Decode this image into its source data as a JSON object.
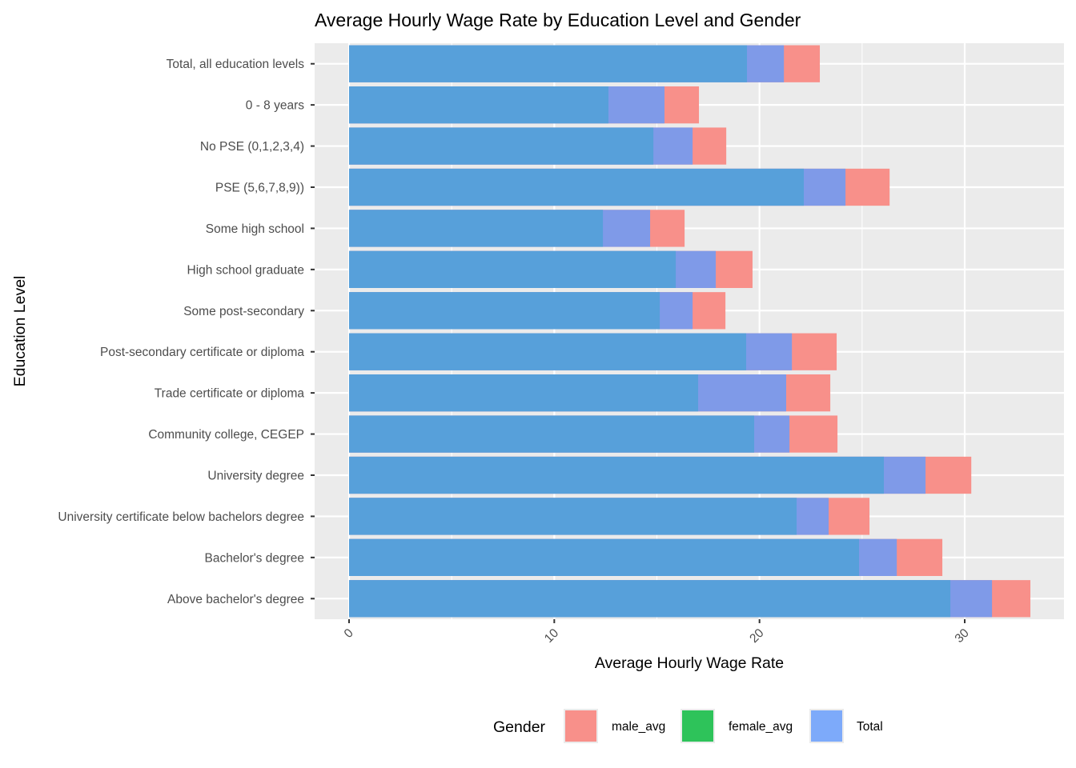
{
  "chart_data": {
    "type": "bar",
    "orientation": "horizontal",
    "title": "Average Hourly Wage Rate by Education Level and Gender",
    "xlabel": "Average Hourly Wage Rate",
    "ylabel": "Education Level",
    "xlim": [
      0,
      35
    ],
    "x_ticks": [
      0,
      10,
      20,
      30
    ],
    "grid": true,
    "legend": {
      "title": "Gender",
      "position": "bottom",
      "entries": [
        {
          "label": "male_avg",
          "color": "#f8908a"
        },
        {
          "label": "female_avg",
          "color": "#2ec35a"
        },
        {
          "label": "Total",
          "color": "#7daafa"
        }
      ]
    },
    "categories": [
      "Total, all education levels",
      "0 - 8  years",
      "No PSE  (0,1,2,3,4)",
      "PSE  (5,6,7,8,9))",
      "Some high school",
      "High school graduate",
      "Some post-secondary",
      "Post-secondary certificate or diploma",
      "Trade certificate or diploma",
      "Community college, CEGEP",
      "University degree",
      "University certificate below bachelors degree",
      "Bachelor's degree",
      "Above bachelor's degree"
    ],
    "series": [
      {
        "name": "male_avg",
        "values": [
          22.94,
          17.05,
          18.38,
          26.34,
          16.35,
          19.66,
          18.34,
          23.76,
          23.45,
          23.8,
          30.32,
          25.36,
          28.91,
          33.2
        ]
      },
      {
        "name": "Total",
        "values": [
          21.19,
          15.37,
          16.74,
          24.19,
          14.67,
          17.87,
          16.74,
          21.58,
          21.3,
          21.46,
          28.09,
          23.37,
          26.69,
          31.33
        ]
      },
      {
        "name": "female_avg",
        "values": [
          19.39,
          12.64,
          14.83,
          22.16,
          12.37,
          15.92,
          15.14,
          19.35,
          17.01,
          19.74,
          26.06,
          21.81,
          24.85,
          29.3
        ]
      }
    ],
    "render_colors": {
      "male_avg": "#f8908a",
      "Total": "#7f9ae8",
      "female_avg": "#57a0da",
      "panel": "#ebebeb",
      "grid": "#ffffff"
    }
  }
}
